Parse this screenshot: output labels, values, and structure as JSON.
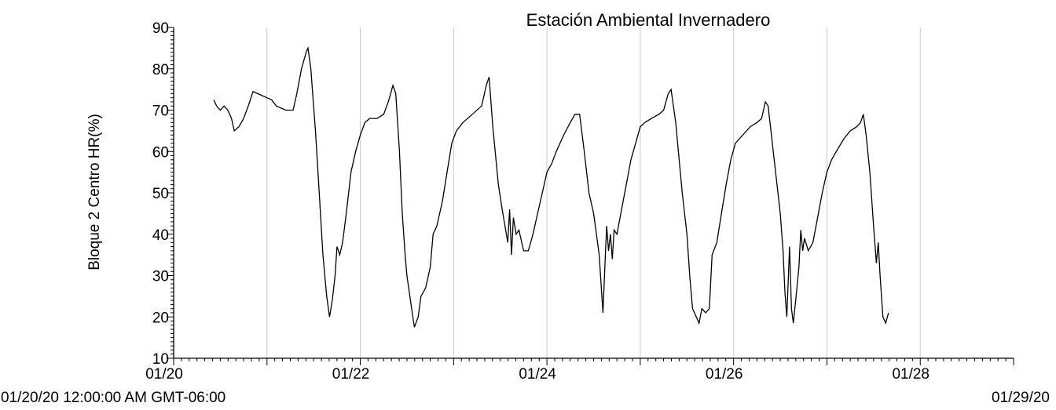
{
  "chart_data": {
    "type": "line",
    "title": "Estación Ambiental Invernadero",
    "ylabel": "Bloque 2 Centro HR(%)",
    "xlabel": "",
    "ylim": [
      10,
      90
    ],
    "xlim": [
      0,
      9
    ],
    "x_unit": "days since 01/20/20 00:00",
    "y_ticks": [
      "10",
      "20",
      "30",
      "40",
      "50",
      "60",
      "70",
      "80",
      "90"
    ],
    "x_ticks": [
      {
        "x": 0,
        "label": "01/20"
      },
      {
        "x": 2,
        "label": "01/22"
      },
      {
        "x": 4,
        "label": "01/24"
      },
      {
        "x": 6,
        "label": "01/26"
      },
      {
        "x": 8,
        "label": "01/28"
      }
    ],
    "vertical_gridlines_x": [
      1,
      2,
      3,
      4,
      5,
      6,
      7,
      8
    ],
    "start_label": "01/20/20 12:00:00 AM GMT-06:00",
    "end_label": "01/29/20",
    "series": [
      {
        "values": [
          [
            0.43,
            72.5
          ],
          [
            0.46,
            71
          ],
          [
            0.5,
            70
          ],
          [
            0.54,
            71
          ],
          [
            0.58,
            70
          ],
          [
            0.62,
            68
          ],
          [
            0.65,
            65
          ],
          [
            0.7,
            66
          ],
          [
            0.75,
            68
          ],
          [
            0.8,
            71
          ],
          [
            0.85,
            74.5
          ],
          [
            0.9,
            74
          ],
          [
            0.95,
            73.5
          ],
          [
            1.0,
            73
          ],
          [
            1.05,
            72.5
          ],
          [
            1.1,
            71
          ],
          [
            1.2,
            70
          ],
          [
            1.28,
            70
          ],
          [
            1.32,
            74
          ],
          [
            1.37,
            80
          ],
          [
            1.42,
            84
          ],
          [
            1.44,
            85
          ],
          [
            1.47,
            80
          ],
          [
            1.52,
            65
          ],
          [
            1.56,
            50
          ],
          [
            1.6,
            35
          ],
          [
            1.64,
            25
          ],
          [
            1.67,
            20
          ],
          [
            1.7,
            24
          ],
          [
            1.73,
            30
          ],
          [
            1.75,
            37
          ],
          [
            1.78,
            35
          ],
          [
            1.81,
            38
          ],
          [
            1.85,
            45
          ],
          [
            1.9,
            55
          ],
          [
            1.95,
            60
          ],
          [
            2.0,
            64
          ],
          [
            2.05,
            67
          ],
          [
            2.1,
            68
          ],
          [
            2.18,
            68
          ],
          [
            2.25,
            69
          ],
          [
            2.3,
            72
          ],
          [
            2.35,
            76
          ],
          [
            2.38,
            74
          ],
          [
            2.42,
            60
          ],
          [
            2.45,
            45
          ],
          [
            2.48,
            35
          ],
          [
            2.5,
            30
          ],
          [
            2.55,
            22
          ],
          [
            2.58,
            17.5
          ],
          [
            2.62,
            20
          ],
          [
            2.65,
            25
          ],
          [
            2.7,
            27
          ],
          [
            2.75,
            32
          ],
          [
            2.78,
            40
          ],
          [
            2.82,
            42
          ],
          [
            2.88,
            48
          ],
          [
            2.93,
            55
          ],
          [
            2.98,
            62
          ],
          [
            3.03,
            65
          ],
          [
            3.1,
            67
          ],
          [
            3.2,
            69
          ],
          [
            3.3,
            71
          ],
          [
            3.35,
            76
          ],
          [
            3.38,
            78
          ],
          [
            3.42,
            66
          ],
          [
            3.48,
            52
          ],
          [
            3.52,
            46
          ],
          [
            3.55,
            42
          ],
          [
            3.58,
            38
          ],
          [
            3.6,
            46
          ],
          [
            3.62,
            35
          ],
          [
            3.64,
            44
          ],
          [
            3.67,
            40
          ],
          [
            3.7,
            41
          ],
          [
            3.75,
            36
          ],
          [
            3.8,
            36
          ],
          [
            3.85,
            40
          ],
          [
            3.9,
            45
          ],
          [
            3.95,
            50
          ],
          [
            4.0,
            55
          ],
          [
            4.05,
            57
          ],
          [
            4.1,
            60
          ],
          [
            4.18,
            64
          ],
          [
            4.25,
            67
          ],
          [
            4.3,
            69
          ],
          [
            4.35,
            69
          ],
          [
            4.4,
            60
          ],
          [
            4.45,
            50
          ],
          [
            4.5,
            45
          ],
          [
            4.53,
            40
          ],
          [
            4.56,
            35
          ],
          [
            4.58,
            28
          ],
          [
            4.6,
            21
          ],
          [
            4.62,
            32
          ],
          [
            4.64,
            42
          ],
          [
            4.66,
            36
          ],
          [
            4.68,
            40
          ],
          [
            4.7,
            34
          ],
          [
            4.72,
            41
          ],
          [
            4.75,
            40
          ],
          [
            4.8,
            46
          ],
          [
            4.85,
            52
          ],
          [
            4.9,
            58
          ],
          [
            4.95,
            62
          ],
          [
            5.0,
            66
          ],
          [
            5.05,
            67
          ],
          [
            5.12,
            68
          ],
          [
            5.2,
            69
          ],
          [
            5.25,
            70
          ],
          [
            5.3,
            74
          ],
          [
            5.33,
            75
          ],
          [
            5.38,
            67
          ],
          [
            5.45,
            50
          ],
          [
            5.5,
            40
          ],
          [
            5.53,
            30
          ],
          [
            5.56,
            22
          ],
          [
            5.6,
            20
          ],
          [
            5.63,
            18.5
          ],
          [
            5.66,
            22
          ],
          [
            5.7,
            21
          ],
          [
            5.74,
            22
          ],
          [
            5.77,
            35
          ],
          [
            5.82,
            38
          ],
          [
            5.87,
            45
          ],
          [
            5.92,
            52
          ],
          [
            5.97,
            58
          ],
          [
            6.02,
            62
          ],
          [
            6.1,
            64
          ],
          [
            6.18,
            66
          ],
          [
            6.25,
            67
          ],
          [
            6.3,
            68
          ],
          [
            6.34,
            72
          ],
          [
            6.37,
            71
          ],
          [
            6.4,
            65
          ],
          [
            6.45,
            55
          ],
          [
            6.5,
            45
          ],
          [
            6.53,
            36
          ],
          [
            6.55,
            26
          ],
          [
            6.57,
            20
          ],
          [
            6.6,
            37
          ],
          [
            6.62,
            22
          ],
          [
            6.64,
            18.5
          ],
          [
            6.67,
            25
          ],
          [
            6.7,
            32
          ],
          [
            6.72,
            41
          ],
          [
            6.74,
            36
          ],
          [
            6.76,
            39
          ],
          [
            6.8,
            36
          ],
          [
            6.85,
            38
          ],
          [
            6.9,
            44
          ],
          [
            6.95,
            50
          ],
          [
            7.0,
            55
          ],
          [
            7.05,
            58
          ],
          [
            7.1,
            60
          ],
          [
            7.18,
            63
          ],
          [
            7.25,
            65
          ],
          [
            7.32,
            66
          ],
          [
            7.36,
            67
          ],
          [
            7.39,
            69
          ],
          [
            7.42,
            64
          ],
          [
            7.46,
            55
          ],
          [
            7.5,
            42
          ],
          [
            7.53,
            33
          ],
          [
            7.55,
            38
          ],
          [
            7.57,
            30
          ],
          [
            7.6,
            20
          ],
          [
            7.63,
            18.5
          ],
          [
            7.66,
            21
          ]
        ]
      }
    ]
  }
}
